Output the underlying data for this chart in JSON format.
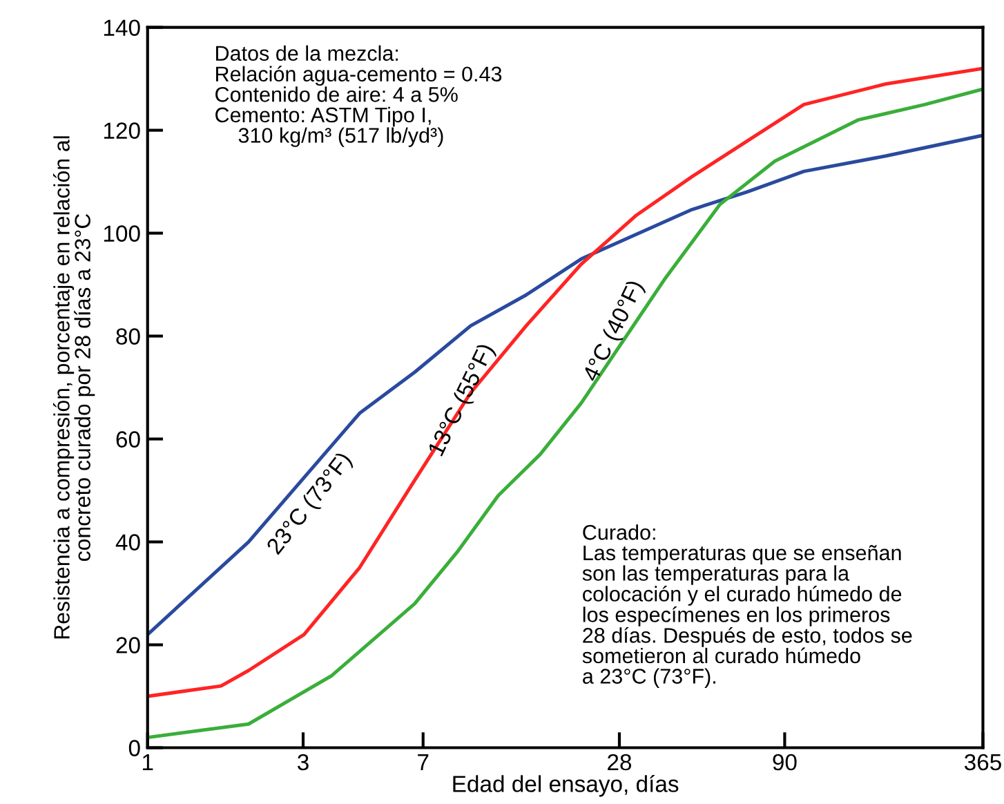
{
  "chart_data": {
    "type": "line",
    "xlabel": "Edad del ensayo, días",
    "ylabel": "Resistencia a compresión, porcentaje en relación al\nconcreto curado por 28 días a 23°C",
    "log": "x",
    "xlim": [
      1,
      365
    ],
    "xticks": [
      1,
      3,
      7,
      28,
      90,
      365
    ],
    "ylim": [
      0,
      140
    ],
    "yticks": [
      0,
      20,
      40,
      60,
      80,
      100,
      120,
      140
    ],
    "grid": false,
    "legend": false,
    "marker": "none",
    "line_style": "solid",
    "series": [
      {
        "color": "#2a4a9e",
        "x": [
          1,
          2.04,
          4.47,
          6.6,
          9.8,
          14.5,
          21.4,
          46.8,
          69,
          103,
          184,
          365
        ],
        "values": [
          22,
          40,
          65,
          73,
          82,
          88,
          95,
          104.6,
          108,
          112,
          115,
          119
        ]
      },
      {
        "color": "#ff2424",
        "x": [
          1,
          1.68,
          2.04,
          3.02,
          4.47,
          6.6,
          9.8,
          14.5,
          21.4,
          31.6,
          46.8,
          103,
          184,
          365
        ],
        "values": [
          10,
          12,
          15,
          22,
          35,
          52,
          69,
          82,
          94,
          103.5,
          111,
          125,
          129,
          132
        ]
      },
      {
        "color": "#3aae3a",
        "x": [
          1,
          2.04,
          3.67,
          6.6,
          8.9,
          11.9,
          16,
          21.4,
          28.7,
          38.5,
          57,
          84,
          151,
          242,
          365
        ],
        "values": [
          2,
          4.6,
          14,
          28,
          38,
          49,
          57,
          67,
          79,
          91,
          105.6,
          114,
          122,
          125,
          128
        ]
      }
    ],
    "annotations": [
      "23°C (73°F)",
      "13°C (55°F)",
      "4°C (40°F)",
      "Datos de la mezcla:\nRelación agua-cemento = 0.43\nContenido de aire: 4 a 5%\nCemento: ASTM Tipo I,\n    310 kg/m³ (517 lb/yd³)",
      "Curado:\nLas temperaturas que se enseñan\nson las temperaturas para la\ncolocación y el curado húmedo de\nlos especímenes en los primeros\n28 días. Después de esto, todos se\nsometieron al curado húmedo\na 23°C (73°F)."
    ]
  }
}
